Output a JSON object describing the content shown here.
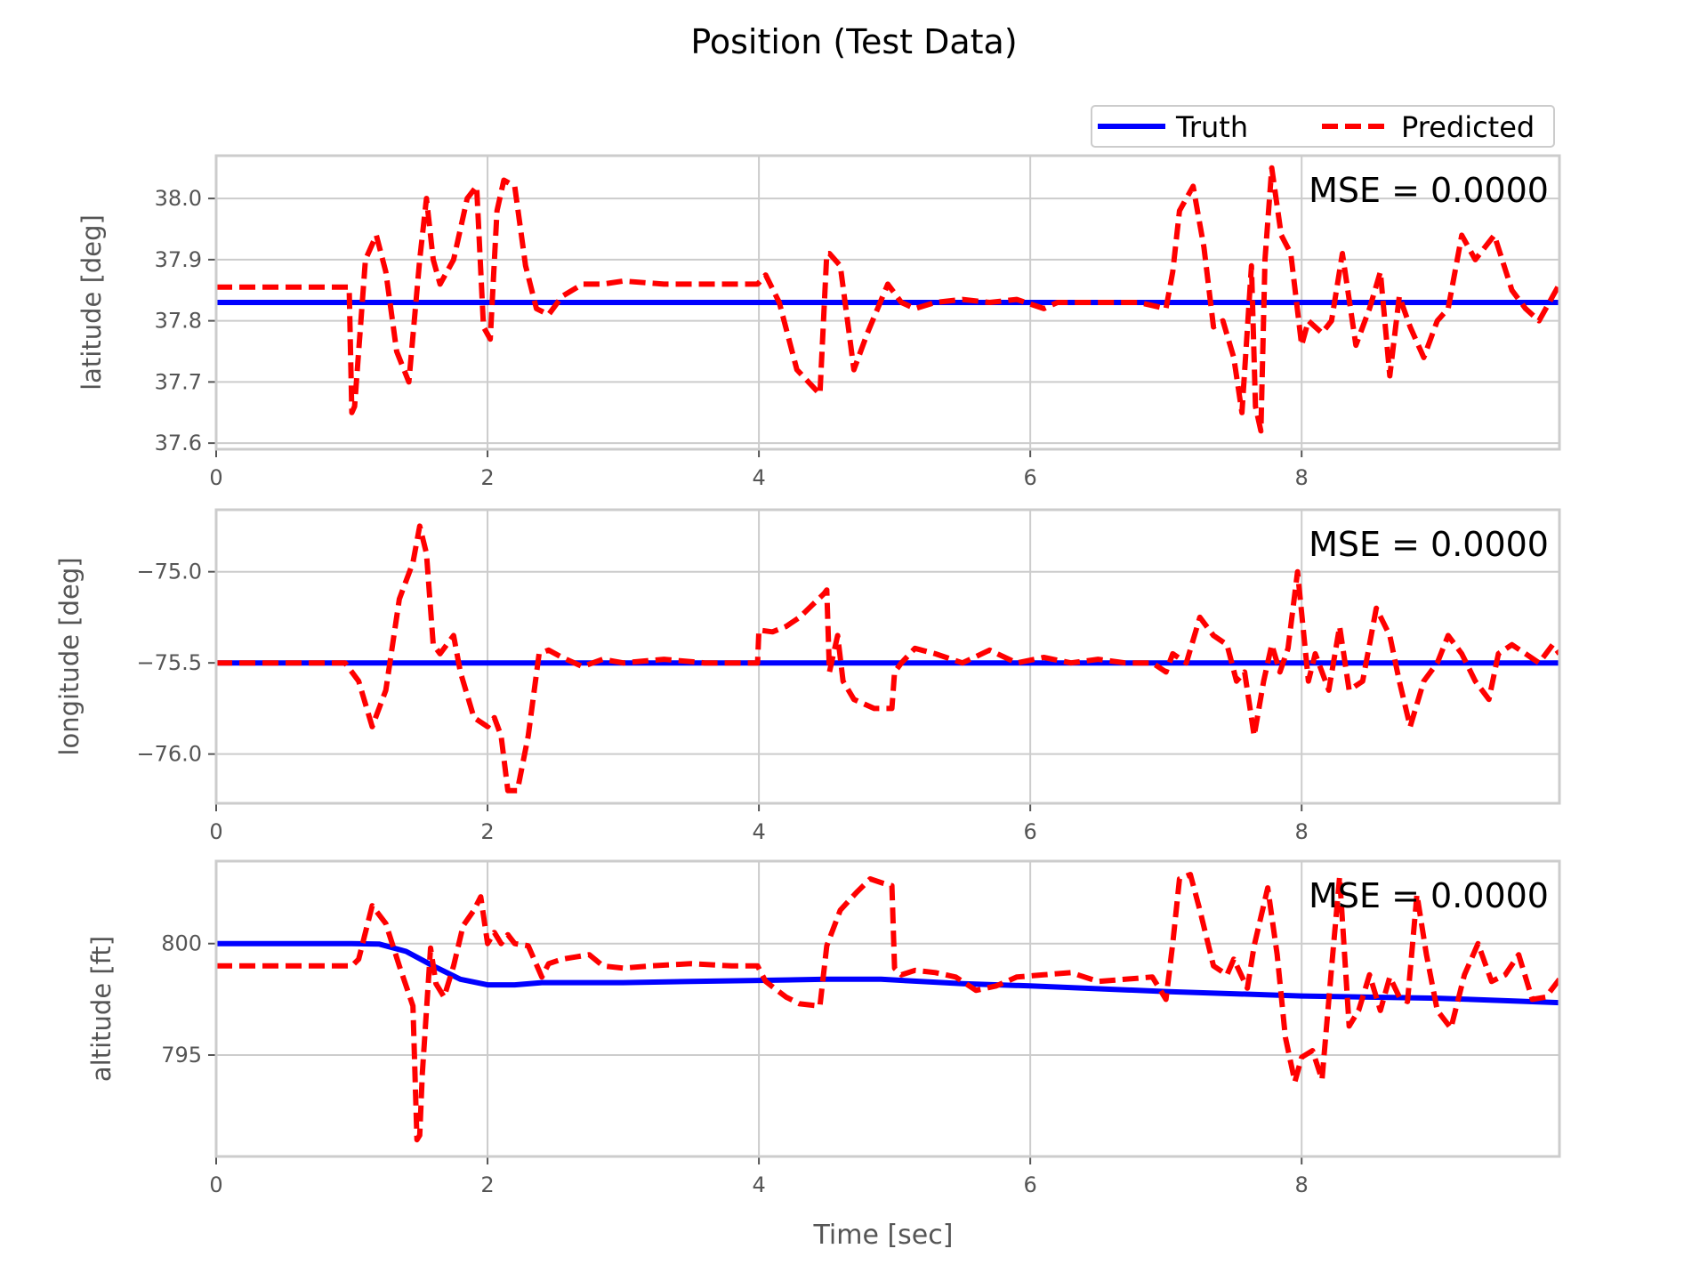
{
  "figure": {
    "title": "Position (Test Data)",
    "xlabel": "Time [sec]",
    "legend": {
      "placement": "top-right, above first panel",
      "truth_label": "Truth",
      "predicted_label": "Predicted"
    },
    "colors": {
      "truth": "#0000ff",
      "predicted": "#ff0000",
      "grid": "#cccccc",
      "text": "#555555"
    }
  },
  "chart_data": [
    {
      "type": "line",
      "title": "",
      "xlabel": "",
      "ylabel": "latitude [deg]",
      "annotation": "MSE = 0.0000",
      "xlim": [
        0,
        9.9
      ],
      "ylim": [
        37.59,
        38.07
      ],
      "xticks": [
        0,
        2,
        4,
        6,
        8
      ],
      "xtick_labels": [
        "0",
        "2",
        "4",
        "6",
        "8"
      ],
      "yticks": [
        37.6,
        37.7,
        37.8,
        37.9,
        38.0
      ],
      "ytick_labels": [
        "37.6",
        "37.7",
        "37.8",
        "37.9",
        "38.0"
      ],
      "grid": true,
      "series": [
        {
          "name": "Truth",
          "style": "solid",
          "color": "#0000ff",
          "x": [
            0,
            9.9
          ],
          "y": [
            37.83,
            37.83
          ]
        },
        {
          "name": "Predicted",
          "style": "dashed",
          "color": "#ff0000",
          "x": [
            0,
            0.98,
            1.0,
            1.02,
            1.1,
            1.18,
            1.25,
            1.33,
            1.42,
            1.5,
            1.55,
            1.6,
            1.65,
            1.75,
            1.85,
            1.92,
            1.97,
            2.02,
            2.07,
            2.12,
            2.2,
            2.28,
            2.36,
            2.45,
            2.55,
            2.7,
            2.85,
            3.0,
            3.3,
            3.6,
            3.99,
            4.05,
            4.15,
            4.28,
            4.45,
            4.5,
            4.52,
            4.6,
            4.7,
            4.8,
            4.95,
            5.05,
            5.15,
            5.3,
            5.5,
            5.7,
            5.9,
            6.1,
            6.2,
            6.4,
            6.6,
            6.8,
            7.0,
            7.05,
            7.1,
            7.2,
            7.28,
            7.35,
            7.42,
            7.5,
            7.56,
            7.63,
            7.66,
            7.7,
            7.73,
            7.78,
            7.85,
            7.92,
            8.0,
            8.05,
            8.15,
            8.22,
            8.3,
            8.4,
            8.5,
            8.58,
            8.65,
            8.72,
            8.8,
            8.9,
            9.0,
            9.08,
            9.18,
            9.28,
            9.35,
            9.42,
            9.55,
            9.65,
            9.75,
            9.85,
            9.9
          ],
          "y": [
            37.855,
            37.855,
            37.65,
            37.66,
            37.9,
            37.94,
            37.88,
            37.75,
            37.7,
            37.9,
            38.0,
            37.9,
            37.86,
            37.9,
            38.0,
            38.02,
            37.79,
            37.77,
            37.98,
            38.03,
            38.02,
            37.89,
            37.82,
            37.81,
            37.84,
            37.86,
            37.86,
            37.865,
            37.86,
            37.86,
            37.86,
            37.875,
            37.83,
            37.72,
            37.68,
            37.91,
            37.91,
            37.89,
            37.72,
            37.78,
            37.86,
            37.83,
            37.82,
            37.83,
            37.835,
            37.83,
            37.835,
            37.82,
            37.83,
            37.83,
            37.83,
            37.83,
            37.82,
            37.88,
            37.98,
            38.02,
            37.92,
            37.79,
            37.8,
            37.74,
            37.65,
            37.89,
            37.66,
            37.62,
            37.9,
            38.05,
            37.94,
            37.91,
            37.76,
            37.8,
            37.78,
            37.8,
            37.91,
            37.76,
            37.82,
            37.88,
            37.71,
            37.84,
            37.79,
            37.74,
            37.8,
            37.82,
            37.94,
            37.9,
            37.92,
            37.94,
            37.85,
            37.82,
            37.8,
            37.84,
            37.86
          ]
        }
      ]
    },
    {
      "type": "line",
      "title": "",
      "xlabel": "",
      "ylabel": "longitude [deg]",
      "annotation": "MSE = 0.0000",
      "xlim": [
        0,
        9.9
      ],
      "ylim": [
        -76.27,
        -74.66
      ],
      "xticks": [
        0,
        2,
        4,
        6,
        8
      ],
      "xtick_labels": [
        "0",
        "2",
        "4",
        "6",
        "8"
      ],
      "yticks": [
        -76.0,
        -75.5,
        -75.0
      ],
      "ytick_labels": [
        "−76.0",
        "−75.5",
        "−75.0"
      ],
      "grid": true,
      "series": [
        {
          "name": "Truth",
          "style": "solid",
          "color": "#0000ff",
          "x": [
            0,
            9.9
          ],
          "y": [
            -75.5,
            -75.5
          ]
        },
        {
          "name": "Predicted",
          "style": "dashed",
          "color": "#ff0000",
          "x": [
            0,
            0.95,
            1.05,
            1.15,
            1.25,
            1.35,
            1.45,
            1.5,
            1.55,
            1.6,
            1.65,
            1.75,
            1.8,
            1.9,
            2.0,
            2.05,
            2.1,
            2.15,
            2.22,
            2.3,
            2.38,
            2.45,
            2.55,
            2.7,
            2.85,
            3.0,
            3.3,
            3.6,
            3.99,
            4.0,
            4.1,
            4.2,
            4.3,
            4.48,
            4.5,
            4.52,
            4.58,
            4.62,
            4.7,
            4.85,
            4.98,
            5.0,
            5.05,
            5.15,
            5.3,
            5.5,
            5.7,
            5.9,
            6.1,
            6.3,
            6.5,
            6.7,
            6.9,
            7.0,
            7.05,
            7.15,
            7.25,
            7.35,
            7.45,
            7.52,
            7.58,
            7.65,
            7.72,
            7.78,
            7.84,
            7.9,
            7.97,
            8.05,
            8.1,
            8.2,
            8.28,
            8.35,
            8.45,
            8.55,
            8.65,
            8.72,
            8.8,
            8.9,
            9.0,
            9.08,
            9.18,
            9.28,
            9.38,
            9.45,
            9.55,
            9.65,
            9.75,
            9.85,
            9.9
          ],
          "y": [
            -75.5,
            -75.5,
            -75.6,
            -75.85,
            -75.65,
            -75.15,
            -74.95,
            -74.75,
            -74.9,
            -75.4,
            -75.45,
            -75.35,
            -75.55,
            -75.8,
            -75.85,
            -75.8,
            -75.9,
            -76.2,
            -76.2,
            -75.9,
            -75.45,
            -75.43,
            -75.47,
            -75.52,
            -75.48,
            -75.5,
            -75.48,
            -75.5,
            -75.5,
            -75.32,
            -75.33,
            -75.3,
            -75.25,
            -75.12,
            -75.1,
            -75.55,
            -75.35,
            -75.6,
            -75.7,
            -75.75,
            -75.75,
            -75.55,
            -75.5,
            -75.42,
            -75.45,
            -75.5,
            -75.43,
            -75.5,
            -75.47,
            -75.5,
            -75.48,
            -75.5,
            -75.5,
            -75.55,
            -75.45,
            -75.5,
            -75.25,
            -75.35,
            -75.4,
            -75.6,
            -75.55,
            -75.9,
            -75.6,
            -75.4,
            -75.55,
            -75.42,
            -75.0,
            -75.6,
            -75.45,
            -75.65,
            -75.3,
            -75.65,
            -75.6,
            -75.2,
            -75.35,
            -75.6,
            -75.85,
            -75.6,
            -75.5,
            -75.35,
            -75.45,
            -75.6,
            -75.7,
            -75.45,
            -75.4,
            -75.45,
            -75.5,
            -75.4,
            -75.45
          ]
        }
      ]
    },
    {
      "type": "line",
      "title": "",
      "xlabel": "Time [sec]",
      "ylabel": "altitude [ft]",
      "annotation": "MSE = 0.0000",
      "xlim": [
        0,
        9.9
      ],
      "ylim": [
        790.45,
        803.7
      ],
      "xticks": [
        0,
        2,
        4,
        6,
        8
      ],
      "xtick_labels": [
        "0",
        "2",
        "4",
        "6",
        "8"
      ],
      "yticks": [
        795,
        800
      ],
      "ytick_labels": [
        "795",
        "800"
      ],
      "grid": true,
      "series": [
        {
          "name": "Truth",
          "style": "solid",
          "color": "#0000ff",
          "x": [
            0,
            1.0,
            1.2,
            1.4,
            1.6,
            1.8,
            2.0,
            2.2,
            2.4,
            3.0,
            3.5,
            4.0,
            4.5,
            4.9,
            5.5,
            6.0,
            7.0,
            8.0,
            9.0,
            9.9
          ],
          "y": [
            800.0,
            800.0,
            799.98,
            799.65,
            799.0,
            798.4,
            798.15,
            798.15,
            798.25,
            798.25,
            798.3,
            798.35,
            798.4,
            798.4,
            798.2,
            798.1,
            797.85,
            797.65,
            797.55,
            797.35
          ]
        },
        {
          "name": "Predicted",
          "style": "dashed",
          "color": "#ff0000",
          "x": [
            0,
            1.0,
            1.05,
            1.15,
            1.25,
            1.35,
            1.45,
            1.48,
            1.5,
            1.52,
            1.58,
            1.62,
            1.68,
            1.75,
            1.82,
            1.9,
            1.95,
            2.0,
            2.05,
            2.1,
            2.15,
            2.2,
            2.3,
            2.4,
            2.45,
            2.55,
            2.65,
            2.75,
            2.85,
            3.0,
            3.2,
            3.5,
            3.8,
            3.99,
            4.05,
            4.2,
            4.3,
            4.45,
            4.5,
            4.6,
            4.72,
            4.82,
            4.92,
            4.98,
            5.0,
            5.05,
            5.15,
            5.3,
            5.45,
            5.6,
            5.75,
            5.9,
            6.1,
            6.3,
            6.5,
            6.7,
            6.9,
            7.0,
            7.05,
            7.1,
            7.18,
            7.25,
            7.35,
            7.45,
            7.5,
            7.6,
            7.65,
            7.75,
            7.82,
            7.88,
            7.95,
            8.0,
            8.08,
            8.15,
            8.22,
            8.28,
            8.35,
            8.42,
            8.5,
            8.58,
            8.65,
            8.72,
            8.78,
            8.85,
            8.92,
            9.0,
            9.1,
            9.2,
            9.3,
            9.4,
            9.5,
            9.6,
            9.7,
            9.8,
            9.9
          ],
          "y": [
            799.0,
            799.0,
            799.3,
            801.7,
            800.9,
            799.0,
            797.2,
            791.2,
            791.4,
            794.2,
            799.8,
            798.2,
            797.6,
            799.0,
            800.8,
            801.5,
            802.1,
            800.0,
            800.5,
            800.0,
            800.4,
            800.0,
            799.9,
            798.5,
            799.1,
            799.3,
            799.4,
            799.5,
            799.0,
            798.9,
            799.0,
            799.1,
            799.0,
            799.0,
            798.3,
            797.6,
            797.3,
            797.2,
            799.9,
            801.5,
            802.3,
            802.9,
            802.7,
            802.6,
            798.9,
            798.6,
            798.8,
            798.7,
            798.5,
            797.9,
            798.1,
            798.5,
            798.6,
            798.7,
            798.3,
            798.4,
            798.5,
            797.5,
            800.0,
            802.9,
            803.1,
            801.5,
            799.0,
            798.6,
            799.3,
            798.0,
            799.9,
            802.5,
            799.5,
            795.8,
            793.8,
            794.9,
            795.2,
            793.9,
            798.9,
            803.0,
            796.3,
            797.0,
            798.6,
            797.0,
            798.5,
            797.6,
            797.4,
            802.2,
            799.5,
            797.0,
            796.2,
            798.6,
            800.0,
            798.3,
            798.6,
            799.5,
            797.5,
            797.6,
            798.4
          ]
        }
      ]
    }
  ]
}
